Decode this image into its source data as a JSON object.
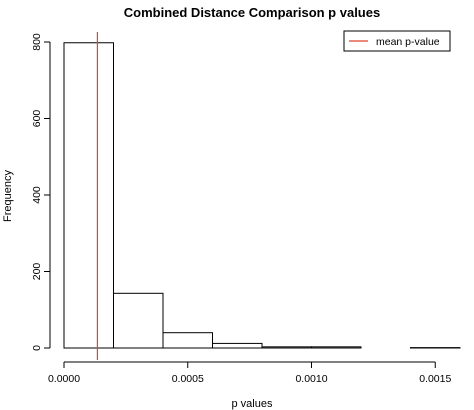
{
  "chart_data": {
    "type": "histogram",
    "title": "Combined Distance Comparison p values",
    "xlabel": "p values",
    "ylabel": "Frequency",
    "bin_edges": [
      0.0,
      0.0002,
      0.0004,
      0.0006,
      0.0008,
      0.001,
      0.0012,
      0.0014,
      0.0016
    ],
    "frequencies": [
      798,
      143,
      40,
      12,
      3,
      3,
      0,
      1
    ],
    "xlim": [
      0.0,
      0.0016
    ],
    "ylim": [
      0,
      800
    ],
    "x_ticks": [
      0.0,
      0.0005,
      0.001,
      0.0015
    ],
    "x_tick_labels": [
      "0.0000",
      "0.0005",
      "0.0010",
      "0.0015"
    ],
    "y_ticks": [
      0,
      200,
      400,
      600,
      800
    ],
    "y_tick_labels": [
      "0",
      "200",
      "400",
      "600",
      "800"
    ],
    "mean_line": {
      "value": 0.000135,
      "color": "#e0452b"
    },
    "legend": {
      "position": "top-right",
      "entries": [
        {
          "label": "mean p-value",
          "color": "#e0452b"
        }
      ]
    },
    "bar_fill": "#ffffff",
    "bar_stroke": "#000000",
    "grid": false
  }
}
